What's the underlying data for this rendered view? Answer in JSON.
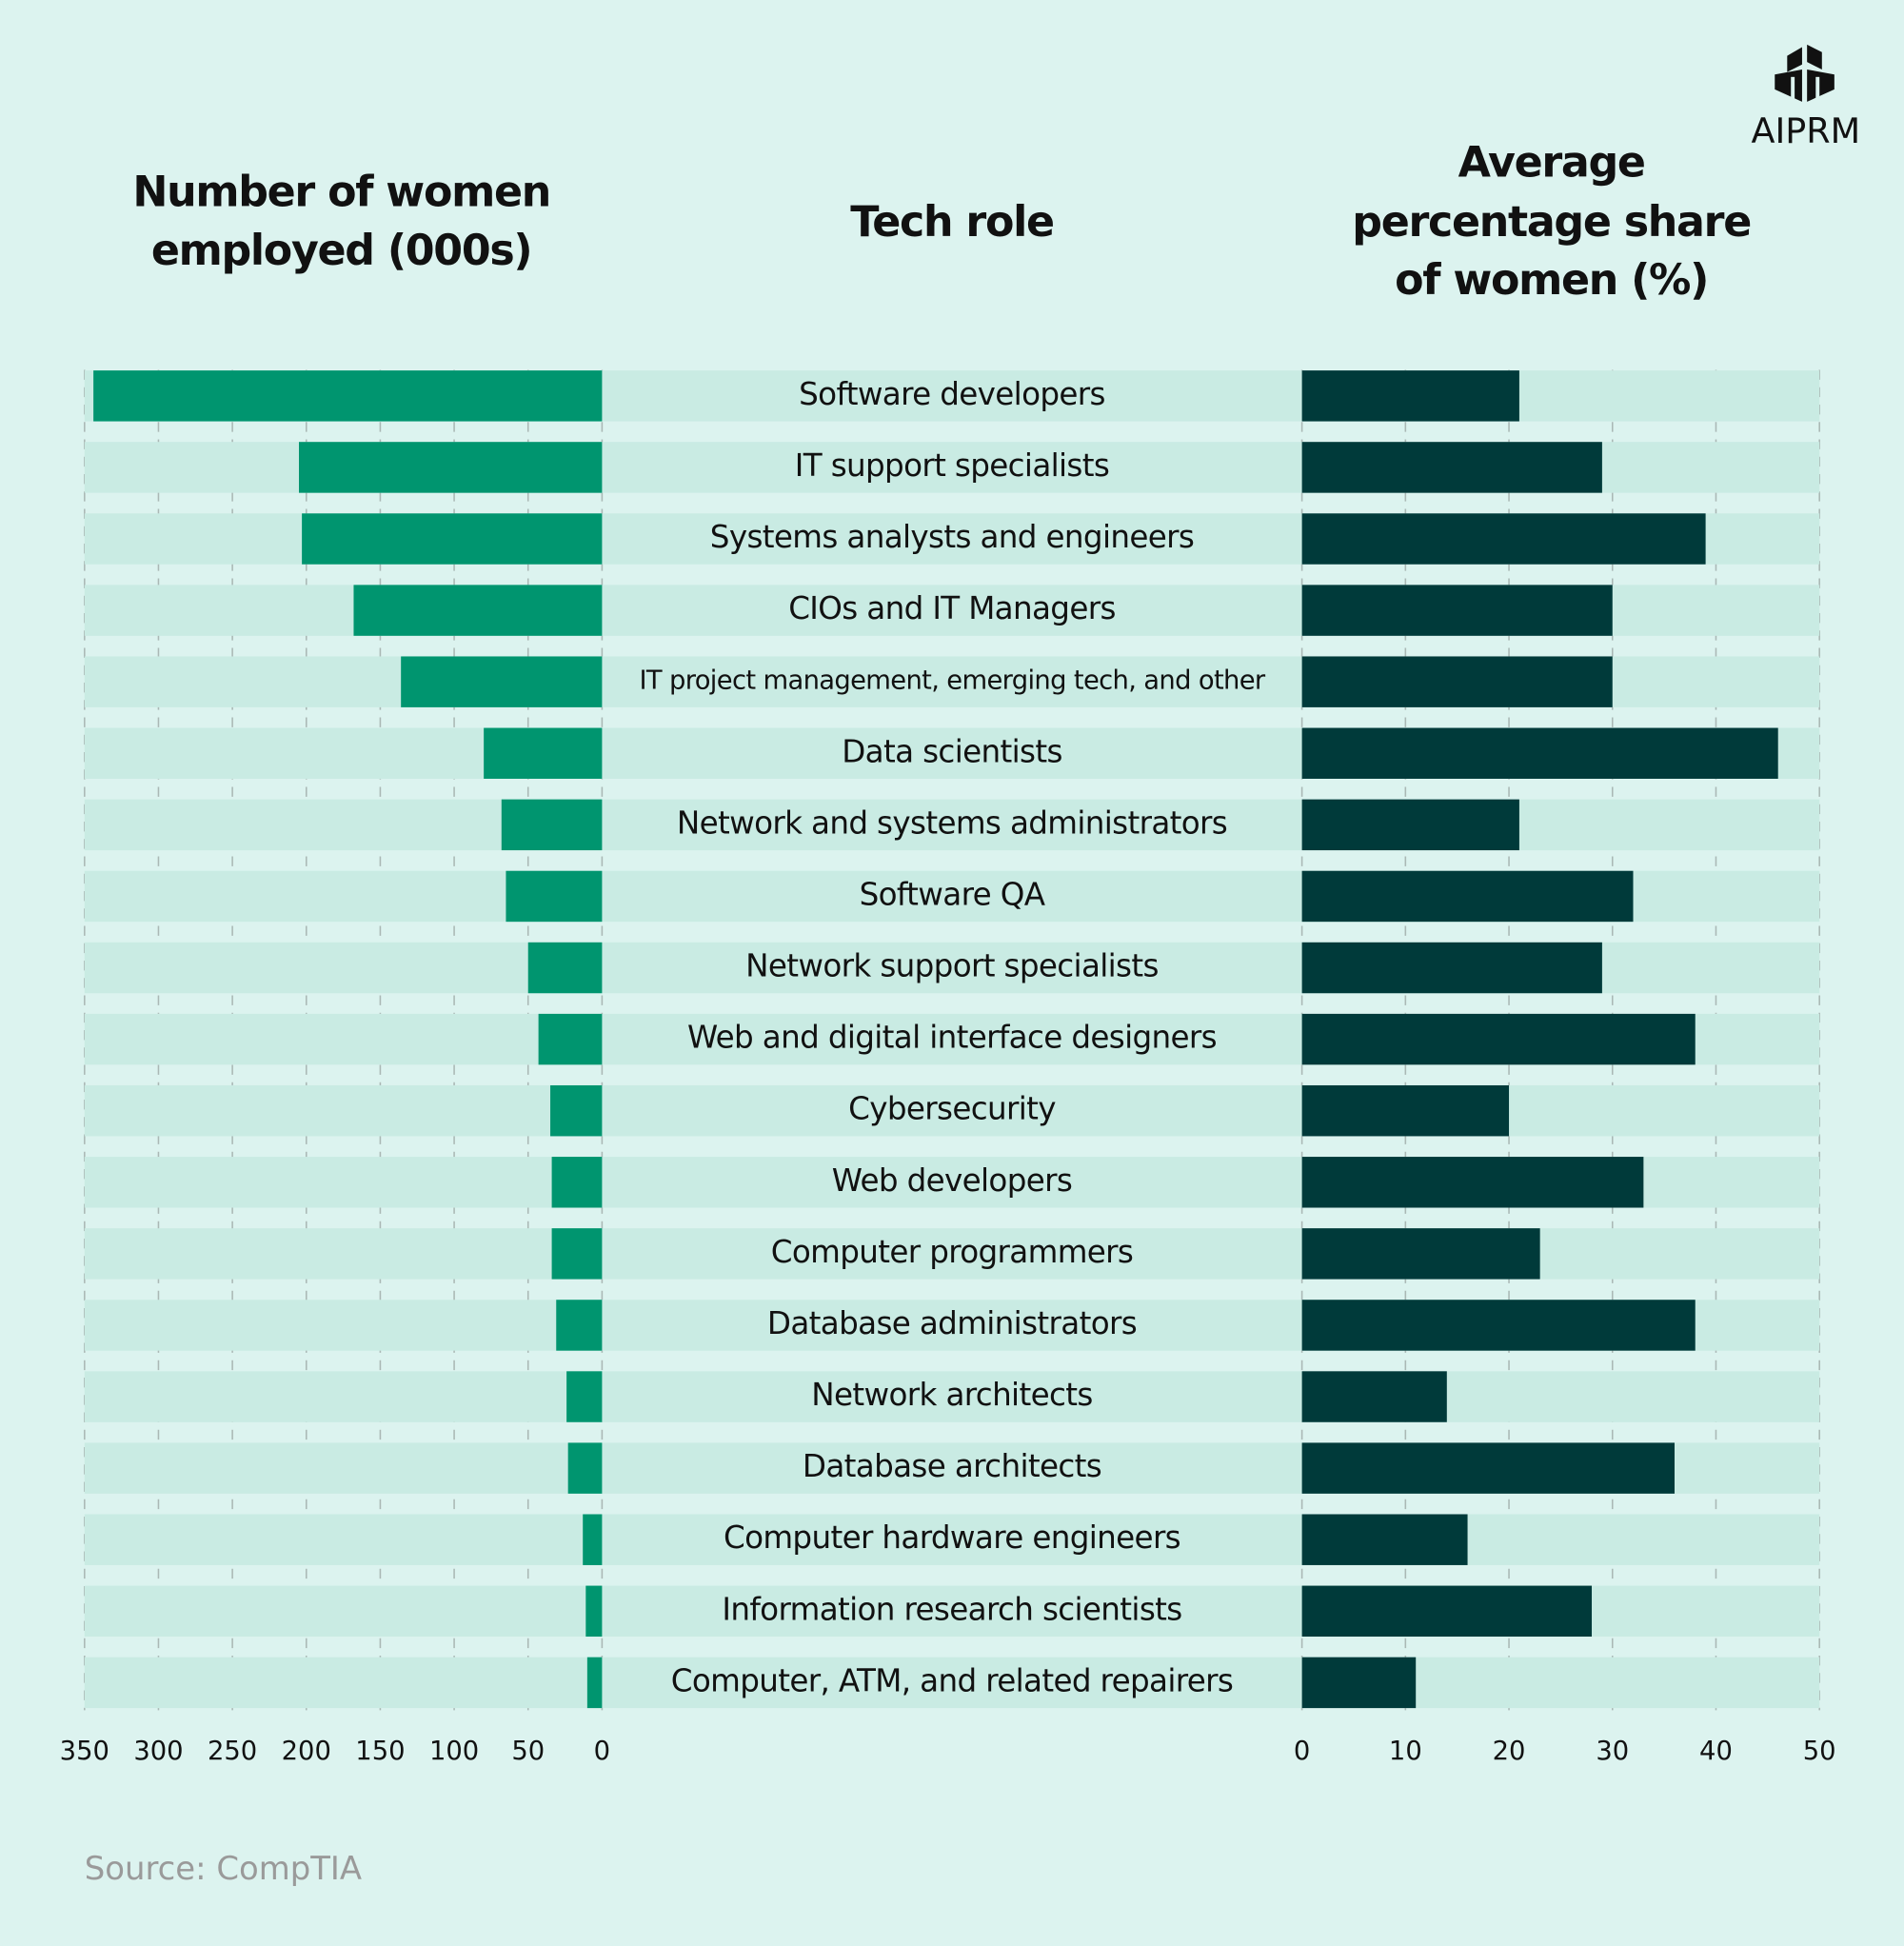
{
  "brand": "AIPRM",
  "source": "Source: CompTIA",
  "chart_data": [
    {
      "type": "bar",
      "orientation": "horizontal",
      "title": [
        "Number of women",
        "employed (000s)"
      ],
      "categories_title": "Tech role",
      "categories": [
        "Software developers",
        "IT support specialists",
        "Systems analysts and engineers",
        "CIOs and IT Managers",
        "IT project management, emerging tech, and other",
        "Data scientists",
        "Network and systems administrators",
        "Software QA",
        "Network support specialists",
        "Web and digital interface designers",
        "Cybersecurity",
        "Web developers",
        "Computer programmers",
        "Database administrators",
        "Network architects",
        "Database architects",
        "Computer hardware engineers",
        "Information research scientists",
        "Computer, ATM, and related repairers"
      ],
      "values": [
        344,
        205,
        203,
        168,
        136,
        80,
        68,
        65,
        50,
        43,
        35,
        34,
        34,
        31,
        24,
        23,
        13,
        11,
        10
      ],
      "color": "#00956f",
      "xlim": [
        350,
        0
      ],
      "xticks": [
        350,
        300,
        250,
        200,
        150,
        100,
        50,
        0
      ],
      "grid": true
    },
    {
      "type": "bar",
      "orientation": "horizontal",
      "title": [
        "Average",
        "percentage share",
        "of women (%)"
      ],
      "values": [
        21,
        29,
        39,
        30,
        30,
        46,
        21,
        32,
        29,
        38,
        20,
        33,
        23,
        38,
        14,
        36,
        16,
        28,
        11
      ],
      "color": "#003a3a",
      "xlim": [
        0,
        50
      ],
      "xticks": [
        0,
        10,
        20,
        30,
        40,
        50
      ],
      "grid": true
    }
  ]
}
